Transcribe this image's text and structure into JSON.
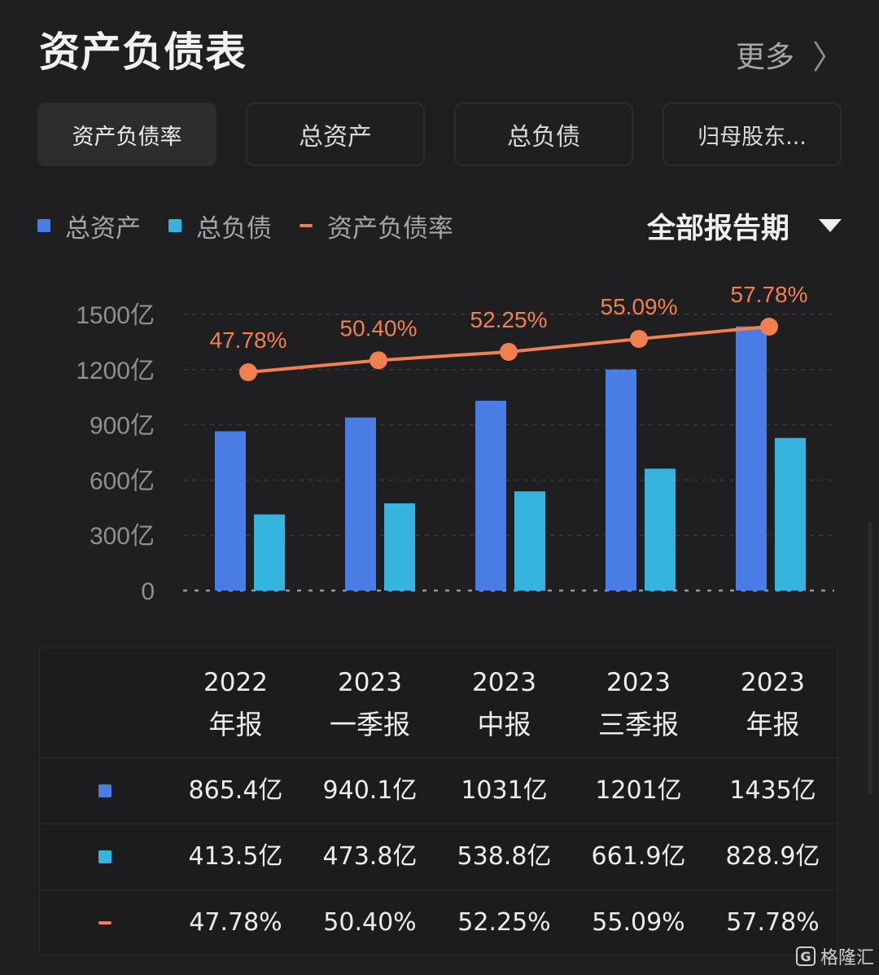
{
  "header": {
    "title": "资产负债表",
    "more_label": "更多",
    "more_icon": "〉"
  },
  "tabs": [
    {
      "label": "资产负债率",
      "active": true
    },
    {
      "label": "总资产",
      "active": false
    },
    {
      "label": "总负债",
      "active": false
    },
    {
      "label": "归母股东...",
      "active": false
    }
  ],
  "legend": [
    {
      "label": "总资产",
      "color": "#4a7de3"
    },
    {
      "label": "总负债",
      "color": "#36b4e0"
    },
    {
      "label": "资产负债率",
      "color": "#f08050"
    }
  ],
  "period_filter": {
    "label": "全部报告期"
  },
  "chart_data": {
    "type": "bar",
    "categories": [
      "2022年报",
      "2023一季报",
      "2023中报",
      "2023三季报",
      "2023年报"
    ],
    "y_ticks": [
      "1500亿",
      "1200亿",
      "900亿",
      "600亿",
      "300亿",
      "0"
    ],
    "ylim": [
      0,
      1500
    ],
    "y_unit": "亿",
    "series": [
      {
        "name": "总资产",
        "type": "bar",
        "color": "#4a7de3",
        "values": [
          865.4,
          940.1,
          1031,
          1201,
          1435
        ]
      },
      {
        "name": "总负债",
        "type": "bar",
        "color": "#36b4e0",
        "values": [
          413.5,
          473.8,
          538.8,
          661.9,
          828.9
        ]
      },
      {
        "name": "资产负债率",
        "type": "line",
        "color": "#f08050",
        "values": [
          47.78,
          50.4,
          52.25,
          55.09,
          57.78
        ],
        "labels": [
          "47.78%",
          "50.40%",
          "52.25%",
          "55.09%",
          "57.78%"
        ]
      }
    ],
    "grid": "dashed"
  },
  "table": {
    "columns": [
      {
        "year": "2022",
        "period": "年报"
      },
      {
        "year": "2023",
        "period": "一季报"
      },
      {
        "year": "2023",
        "period": "中报"
      },
      {
        "year": "2023",
        "period": "三季报"
      },
      {
        "year": "2023",
        "period": "年报"
      }
    ],
    "rows": [
      {
        "marker": "square",
        "color": "#4a7de3",
        "values": [
          "865.4亿",
          "940.1亿",
          "1031亿",
          "1201亿",
          "1435亿"
        ]
      },
      {
        "marker": "square",
        "color": "#36b4e0",
        "values": [
          "413.5亿",
          "473.8亿",
          "538.8亿",
          "661.9亿",
          "828.9亿"
        ]
      },
      {
        "marker": "line",
        "color": "#f08050",
        "values": [
          "47.78%",
          "50.40%",
          "52.25%",
          "55.09%",
          "57.78%"
        ]
      }
    ]
  },
  "watermark": {
    "icon_letter": "G",
    "text": "格隆汇"
  }
}
